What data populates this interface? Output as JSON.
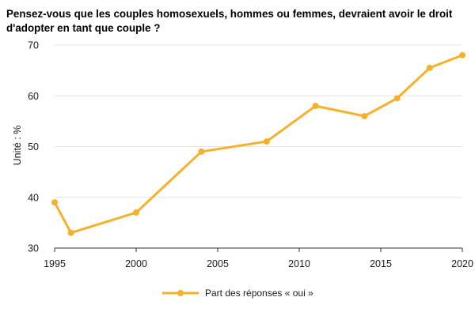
{
  "chart_data": {
    "type": "line",
    "title": "Pensez-vous que les couples homosexuels, hommes ou femmes, devraient avoir le droit d'adopter en tant que couple ?",
    "xlabel": "",
    "ylabel": "Unité : %",
    "xlim": [
      1995,
      2020
    ],
    "ylim": [
      30,
      70
    ],
    "xticks": [
      1995,
      2000,
      2005,
      2010,
      2015,
      2020
    ],
    "yticks": [
      30,
      40,
      50,
      60,
      70
    ],
    "grid": "horizontal",
    "legend_position": "bottom-center",
    "series": [
      {
        "name": "Part des réponses « oui »",
        "color": "#f6b02a",
        "x": [
          1995,
          1996,
          2000,
          2004,
          2008,
          2011,
          2014,
          2016,
          2018,
          2020
        ],
        "y": [
          39,
          33,
          37,
          49,
          51,
          58,
          56,
          59.5,
          65.5,
          68
        ]
      }
    ]
  }
}
